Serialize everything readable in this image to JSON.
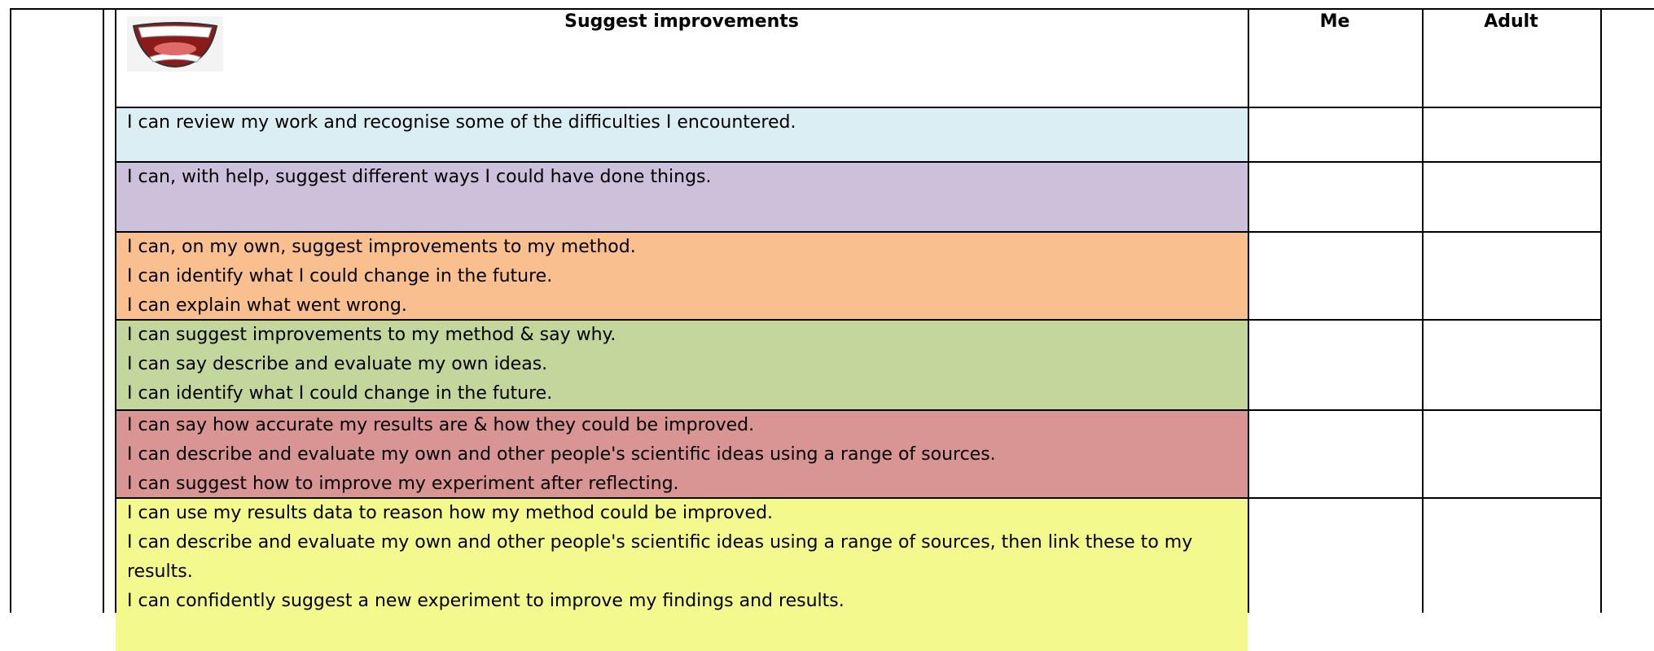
{
  "header": {
    "title": "Suggest improvements",
    "me": "Me",
    "adult": "Adult"
  },
  "rows": [
    {
      "color": "#daeef3",
      "lines": [
        "I can review my work and recognise some of the difficulties I encountered."
      ]
    },
    {
      "color": "#ccc0da",
      "lines": [
        "I can, with help, suggest different ways I could have done things."
      ]
    },
    {
      "color": "#fabf8f",
      "lines": [
        "I can, on my own, suggest improvements to my method.",
        "I can identify what I could change in the future.",
        "I can explain what went wrong."
      ]
    },
    {
      "color": "#c3d69b",
      "lines": [
        "I can suggest improvements to my method & say why.",
        "I can say describe and evaluate my own ideas.",
        "I can identify what I could change in the future."
      ]
    },
    {
      "color": "#d99594",
      "lines": [
        "I can say how accurate my results are & how they could be improved.",
        "I can describe and evaluate my own and other people's scientific ideas using a range of sources.",
        "I can suggest how to improve my experiment after reflecting."
      ]
    },
    {
      "color": "#f4f98d",
      "lines": [
        "I can use my results data to reason how my method could be improved.",
        "I can describe and evaluate my own and other people's scientific ideas using a range of sources, then link these to my results.",
        "I can confidently suggest a new experiment to improve my findings and results."
      ]
    }
  ]
}
